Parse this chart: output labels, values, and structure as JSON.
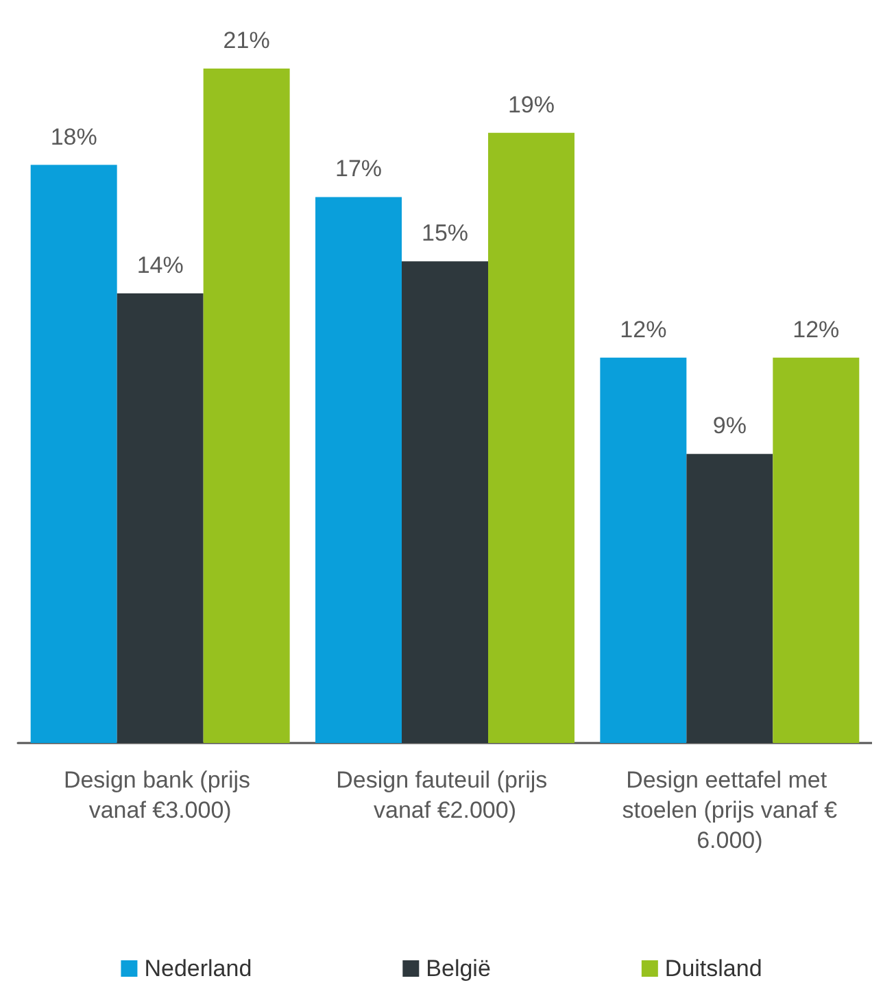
{
  "chart_data": {
    "type": "bar",
    "categories": [
      "Design bank (prijs vanaf €3.000)",
      "Design fauteuil (prijs vanaf €2.000)",
      "Design eettafel met stoelen (prijs vanaf €6.000)"
    ],
    "series": [
      {
        "name": "Nederland",
        "color": "#0a9fdb",
        "values": [
          18,
          17,
          12
        ],
        "value_labels": [
          "18%",
          "17%",
          "12%"
        ]
      },
      {
        "name": "België",
        "color": "#2e383d",
        "values": [
          14,
          15,
          9
        ],
        "value_labels": [
          "14%",
          "15%",
          "9%"
        ]
      },
      {
        "name": "Duitsland",
        "color": "#97c11f",
        "values": [
          21,
          19,
          12
        ],
        "value_labels": [
          "21%",
          "19%",
          "12%"
        ]
      }
    ],
    "legend": "bottom"
  }
}
